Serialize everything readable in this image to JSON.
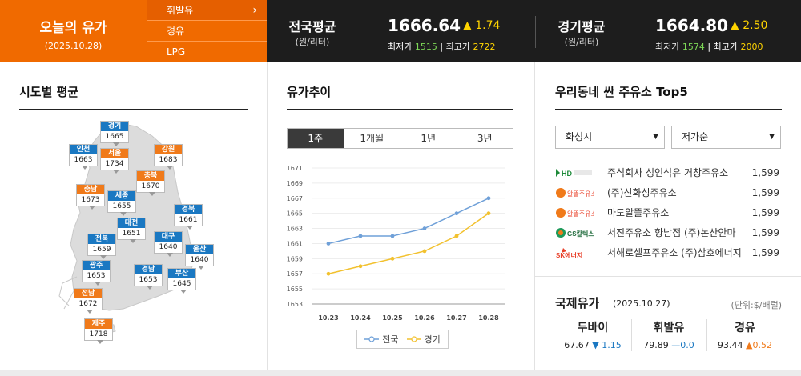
{
  "brand": {
    "title": "오늘의 유가",
    "date": "(2025.10.28)"
  },
  "fuel_tabs": [
    {
      "label": "휘발유",
      "active": true
    },
    {
      "label": "경유",
      "active": false
    },
    {
      "label": "LPG",
      "active": false
    }
  ],
  "national": {
    "label": "전국평균",
    "unit": "(원/리터)",
    "price": "1666.64",
    "change": "▲ 1.74",
    "min_label": "최저가",
    "min": "1515",
    "max_label": "최고가",
    "max": "2722"
  },
  "gyeonggi": {
    "label": "경기평균",
    "unit": "(원/리터)",
    "price": "1664.80",
    "change": "▲ 2.50",
    "min_label": "최저가",
    "min": "1574",
    "max_label": "최고가",
    "max": "2000"
  },
  "sido": {
    "title": "시도별 평균",
    "regions": [
      {
        "name": "경기",
        "value": "1665",
        "color": "blue"
      },
      {
        "name": "인천",
        "value": "1663",
        "color": "blue"
      },
      {
        "name": "서울",
        "value": "1734",
        "color": "orange"
      },
      {
        "name": "강원",
        "value": "1683",
        "color": "orange"
      },
      {
        "name": "충북",
        "value": "1670",
        "color": "orange"
      },
      {
        "name": "충남",
        "value": "1673",
        "color": "orange"
      },
      {
        "name": "세종",
        "value": "1655",
        "color": "blue"
      },
      {
        "name": "경북",
        "value": "1661",
        "color": "blue"
      },
      {
        "name": "대전",
        "value": "1651",
        "color": "blue"
      },
      {
        "name": "전북",
        "value": "1659",
        "color": "blue"
      },
      {
        "name": "대구",
        "value": "1640",
        "color": "blue"
      },
      {
        "name": "울산",
        "value": "1640",
        "color": "blue"
      },
      {
        "name": "광주",
        "value": "1653",
        "color": "blue"
      },
      {
        "name": "경남",
        "value": "1653",
        "color": "blue"
      },
      {
        "name": "부산",
        "value": "1645",
        "color": "blue"
      },
      {
        "name": "전남",
        "value": "1672",
        "color": "orange"
      },
      {
        "name": "제주",
        "value": "1718",
        "color": "orange"
      }
    ]
  },
  "trend": {
    "title": "유가추이",
    "tabs": [
      {
        "label": "1주",
        "active": true
      },
      {
        "label": "1개월",
        "active": false
      },
      {
        "label": "1년",
        "active": false
      },
      {
        "label": "3년",
        "active": false
      }
    ]
  },
  "chart_data": {
    "type": "line",
    "x": [
      "10.23",
      "10.24",
      "10.25",
      "10.26",
      "10.27",
      "10.28"
    ],
    "series": [
      {
        "name": "전국",
        "color": "#6fa0d8",
        "values": [
          1661,
          1662,
          1662,
          1663,
          1665,
          1667
        ]
      },
      {
        "name": "경기",
        "color": "#f2c12e",
        "values": [
          1657,
          1658,
          1659,
          1660,
          1662,
          1665
        ]
      }
    ],
    "ylim": [
      1653,
      1671
    ],
    "yticks": [
      "1671",
      "1669",
      "1667",
      "1665",
      "1663",
      "1661",
      "1659",
      "1657",
      "1655",
      "1653"
    ],
    "grid": true,
    "legend": "bottom"
  },
  "top5": {
    "title": "우리동네 싼 주유소 Top5",
    "region_select": "화성시",
    "sort_select": "저가순",
    "stations": [
      {
        "brand": "HD HYUNDAI OILBANK",
        "brand_short": "HD",
        "name": "주식회사 성인석유 거창주유소",
        "price": "1,599",
        "logo": "hd"
      },
      {
        "brand": "알뜰주유소",
        "brand_short": "알뜰주유소",
        "name": "(주)신화싱주유소",
        "price": "1,599",
        "logo": "alddeul"
      },
      {
        "brand": "알뜰주유소",
        "brand_short": "알뜰주유소",
        "name": "마도알뜰주유소",
        "price": "1,599",
        "logo": "alddeul"
      },
      {
        "brand": "GS칼텍스",
        "brand_short": "GS칼텍스",
        "name": "서진주유소 향남점 (주)논산안마",
        "price": "1,599",
        "logo": "gs"
      },
      {
        "brand": "SK에너지",
        "brand_short": "SK에너지",
        "name": "서해로셀프주유소 (주)삼호에너지",
        "price": "1,599",
        "logo": "sk"
      }
    ]
  },
  "intl": {
    "title": "국제유가",
    "date": "(2025.10.27)",
    "unit": "(단위:$/배럴)",
    "items": [
      {
        "name": "두바이",
        "value": "67.67",
        "change": "▼ 1.15",
        "dir": "down"
      },
      {
        "name": "휘발유",
        "value": "79.89",
        "change": "—0.0",
        "dir": "flat"
      },
      {
        "name": "경유",
        "value": "93.44",
        "change": "▲0.52",
        "dir": "up"
      }
    ]
  }
}
